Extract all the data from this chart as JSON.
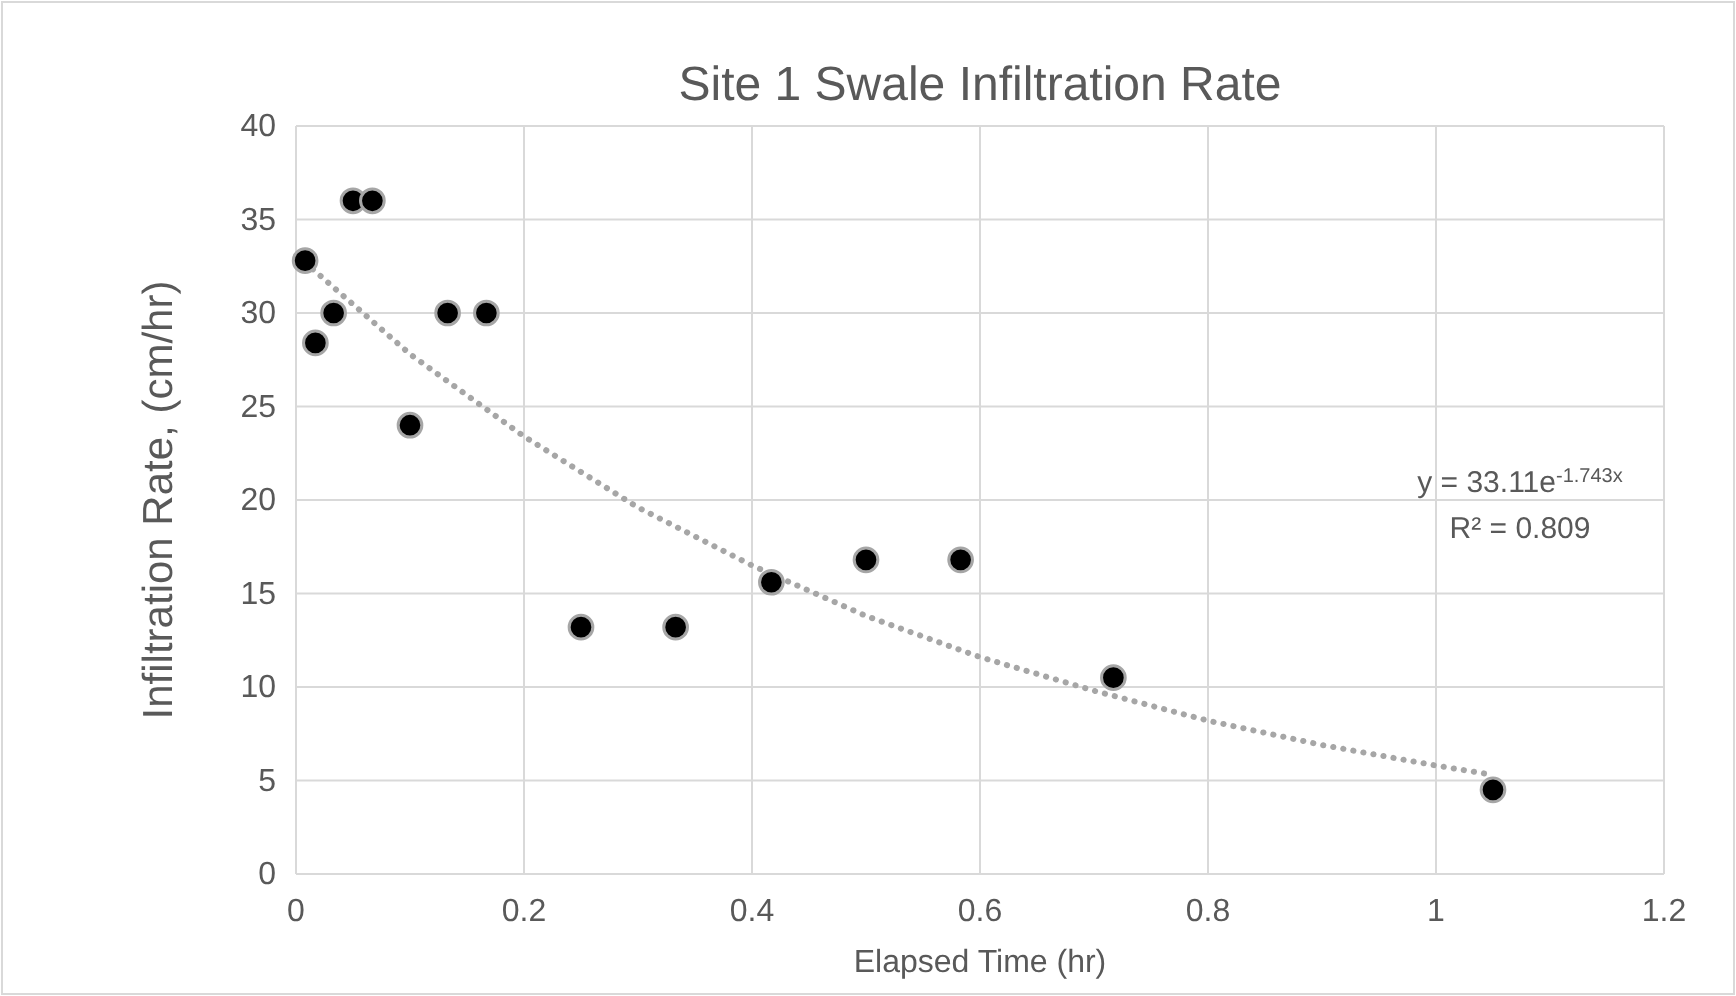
{
  "chart_data": {
    "type": "scatter",
    "title": "Site 1 Swale Infiltration Rate",
    "xlabel": "Elapsed Time (hr)",
    "ylabel": "Infiltration Rate, (cm/hr)",
    "xlim": [
      0,
      1.2
    ],
    "xticks": [
      0,
      0.2,
      0.4,
      0.6,
      0.8,
      1,
      1.2
    ],
    "ylim": [
      0,
      40
    ],
    "yticks": [
      0,
      5,
      10,
      15,
      20,
      25,
      30,
      35,
      40
    ],
    "grid": true,
    "marker": "circle",
    "series": [
      {
        "type": "line",
        "color": "#a6a6a6",
        "line_style": "dotted",
        "marker": "none",
        "x": [
          0.008,
          0.1,
          0.2,
          0.3,
          0.4,
          0.5,
          0.6,
          0.7,
          0.8,
          0.9,
          1.0,
          1.05
        ],
        "values": [
          32.7,
          27.8,
          23.4,
          19.6,
          16.5,
          13.8,
          11.6,
          9.8,
          8.2,
          6.9,
          5.8,
          5.3
        ]
      },
      {
        "color": "#000000",
        "x": [
          0.008,
          0.017,
          0.033,
          0.05,
          0.067,
          0.1,
          0.133,
          0.167,
          0.25,
          0.333,
          0.417,
          0.5,
          0.583,
          0.717,
          1.05
        ],
        "values": [
          32.8,
          28.4,
          30,
          36,
          36,
          24,
          30,
          30,
          13.2,
          13.2,
          15.6,
          16.8,
          16.8,
          10.5,
          4.5
        ]
      }
    ],
    "annotations": [
      "y = 33.11e$^{-1.743x}$",
      "R² = 0.809"
    ]
  }
}
